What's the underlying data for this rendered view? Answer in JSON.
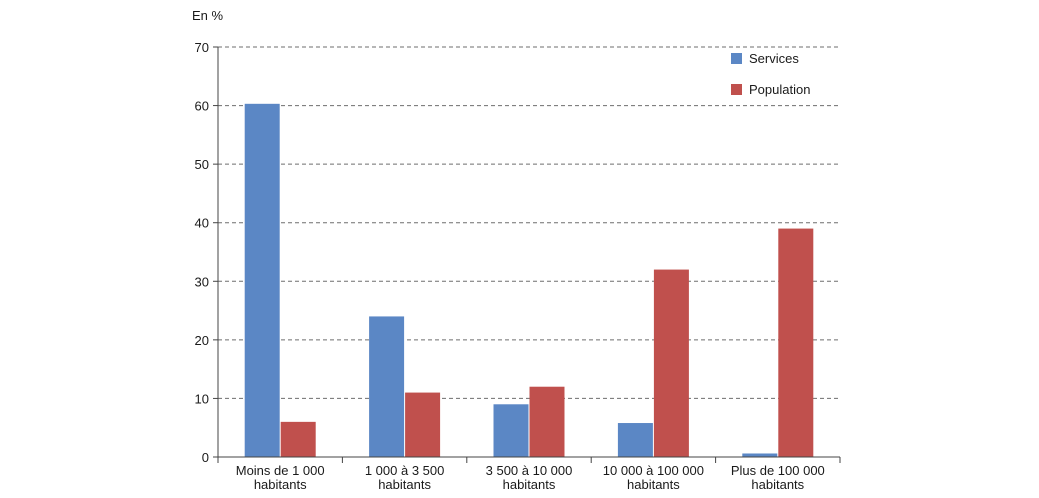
{
  "chart_data": {
    "type": "bar",
    "unit_label": "En %",
    "categories": [
      [
        "Moins de 1 000",
        "habitants"
      ],
      [
        "1 000 à 3 500",
        "habitants"
      ],
      [
        "3 500 à 10 000",
        "habitants"
      ],
      [
        "10 000 à 100 000",
        "habitants"
      ],
      [
        "Plus de 100 000",
        "habitants"
      ]
    ],
    "series": [
      {
        "name": "Services",
        "color": "#5b87c5",
        "values": [
          60.3,
          24.0,
          9.0,
          5.8,
          0.6
        ]
      },
      {
        "name": "Population",
        "color": "#c0504d",
        "values": [
          6.0,
          11.0,
          12.0,
          32.0,
          39.0
        ]
      }
    ],
    "ylim": [
      0,
      70
    ],
    "yticks": [
      0,
      10,
      20,
      30,
      40,
      50,
      60,
      70
    ],
    "grid": true,
    "legend_position": "top-right"
  }
}
